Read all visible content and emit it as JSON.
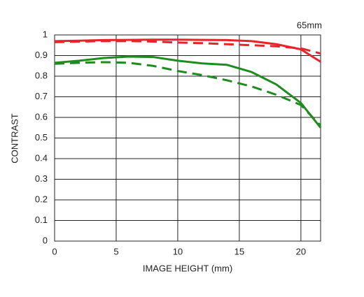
{
  "chart_data": {
    "type": "line",
    "title": "65mm",
    "xlabel": "IMAGE HEIGHT (mm)",
    "ylabel": "CONTRAST",
    "x": [
      0,
      2,
      4,
      6,
      8,
      10,
      12,
      14,
      16,
      18,
      20,
      21.6
    ],
    "series": [
      {
        "color": "#e8242a",
        "dash": false,
        "values": [
          0.97,
          0.972,
          0.975,
          0.976,
          0.977,
          0.977,
          0.976,
          0.975,
          0.97,
          0.955,
          0.93,
          0.87
        ]
      },
      {
        "color": "#e8242a",
        "dash": true,
        "values": [
          0.965,
          0.968,
          0.97,
          0.97,
          0.968,
          0.963,
          0.96,
          0.955,
          0.95,
          0.945,
          0.935,
          0.91
        ]
      },
      {
        "color": "#1e8c1e",
        "dash": false,
        "values": [
          0.865,
          0.875,
          0.888,
          0.895,
          0.893,
          0.875,
          0.862,
          0.855,
          0.82,
          0.76,
          0.67,
          0.55
        ]
      },
      {
        "color": "#1e8c1e",
        "dash": true,
        "values": [
          0.86,
          0.865,
          0.868,
          0.865,
          0.85,
          0.825,
          0.805,
          0.78,
          0.75,
          0.71,
          0.66,
          0.56
        ]
      }
    ],
    "xlim": [
      0,
      21.6
    ],
    "xticks": [
      0,
      5,
      10,
      15,
      20
    ],
    "ylim": [
      0,
      1
    ],
    "yticks": [
      0,
      0.1,
      0.2,
      0.3,
      0.4,
      0.5,
      0.6,
      0.7,
      0.8,
      0.9,
      1
    ],
    "grid": true
  }
}
